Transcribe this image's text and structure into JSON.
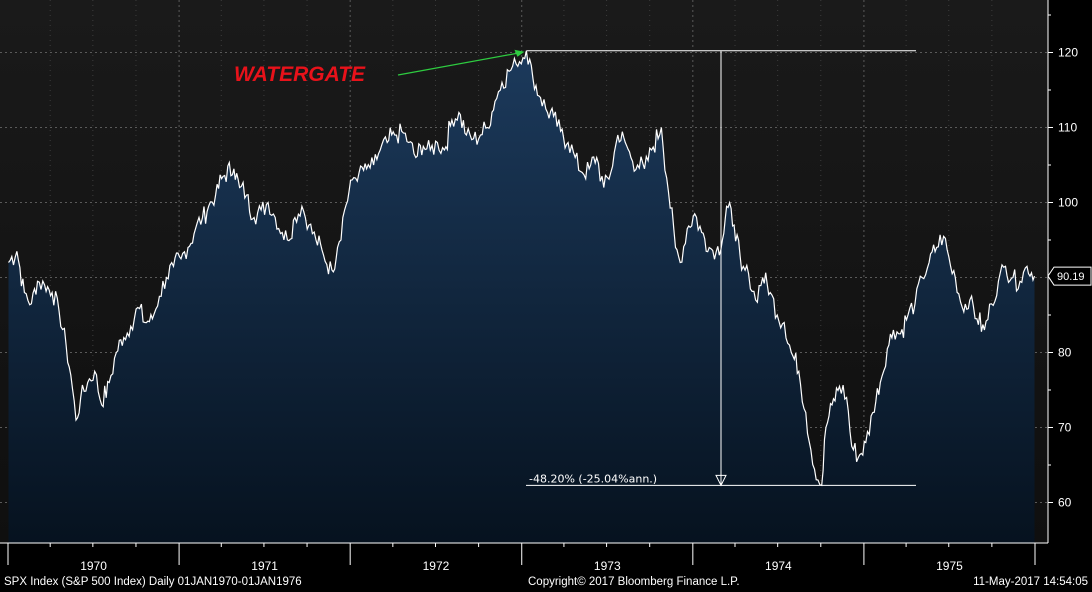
{
  "chart_data": {
    "type": "area",
    "title": "",
    "xlabel": "",
    "ylabel": "",
    "xlim": [
      "1970-01-01",
      "1976-01-01"
    ],
    "ylim": [
      55,
      127
    ],
    "grid": true,
    "y_axis_side": "right",
    "y_ticks": [
      "60",
      "70",
      "80",
      "90",
      "100",
      "110",
      "120"
    ],
    "x_tick_labels": [
      "1970",
      "1971",
      "1972",
      "1973",
      "1974",
      "1975"
    ],
    "series": [
      {
        "color": "#ffffff",
        "fill_top": "#1c3a5c",
        "fill_bottom": "#06121f",
        "x": [
          "1970-01-02",
          "1970-01-20",
          "1970-02-05",
          "1970-02-20",
          "1970-03-05",
          "1970-03-20",
          "1970-04-05",
          "1970-04-20",
          "1970-05-05",
          "1970-05-15",
          "1970-05-26",
          "1970-06-05",
          "1970-06-20",
          "1970-07-05",
          "1970-07-20",
          "1970-08-05",
          "1970-08-20",
          "1970-09-05",
          "1970-09-20",
          "1970-10-05",
          "1970-10-20",
          "1970-11-05",
          "1970-11-20",
          "1970-12-05",
          "1970-12-20",
          "1971-01-05",
          "1971-01-20",
          "1971-02-05",
          "1971-02-20",
          "1971-03-05",
          "1971-03-20",
          "1971-04-05",
          "1971-04-28",
          "1971-05-10",
          "1971-05-25",
          "1971-06-10",
          "1971-06-25",
          "1971-07-10",
          "1971-07-25",
          "1971-08-09",
          "1971-08-20",
          "1971-09-05",
          "1971-09-20",
          "1971-10-05",
          "1971-10-20",
          "1971-11-05",
          "1971-11-23",
          "1971-12-05",
          "1971-12-20",
          "1972-01-05",
          "1972-01-20",
          "1972-02-05",
          "1972-02-20",
          "1972-03-05",
          "1972-03-20",
          "1972-04-05",
          "1972-04-20",
          "1972-05-05",
          "1972-05-20",
          "1972-06-05",
          "1972-06-20",
          "1972-07-05",
          "1972-07-20",
          "1972-08-05",
          "1972-08-20",
          "1972-09-05",
          "1972-09-20",
          "1972-10-05",
          "1972-10-20",
          "1972-11-05",
          "1972-11-20",
          "1972-12-05",
          "1972-12-20",
          "1973-01-11",
          "1973-01-25",
          "1973-02-10",
          "1973-02-25",
          "1973-03-10",
          "1973-03-25",
          "1973-04-10",
          "1973-04-25",
          "1973-05-10",
          "1973-05-25",
          "1973-06-10",
          "1973-06-25",
          "1973-07-10",
          "1973-07-25",
          "1973-08-10",
          "1973-08-22",
          "1973-09-05",
          "1973-09-20",
          "1973-10-05",
          "1973-10-26",
          "1973-11-10",
          "1973-11-25",
          "1973-12-05",
          "1973-12-20",
          "1974-01-05",
          "1974-01-20",
          "1974-02-05",
          "1974-02-20",
          "1974-03-05",
          "1974-03-14",
          "1974-03-30",
          "1974-04-15",
          "1974-04-30",
          "1974-05-15",
          "1974-05-30",
          "1974-06-15",
          "1974-06-30",
          "1974-07-15",
          "1974-07-30",
          "1974-08-15",
          "1974-08-30",
          "1974-09-10",
          "1974-09-25",
          "1974-10-03",
          "1974-10-12",
          "1974-10-25",
          "1974-11-10",
          "1974-11-25",
          "1974-12-06",
          "1974-12-20",
          "1975-01-05",
          "1975-01-20",
          "1975-02-05",
          "1975-02-20",
          "1975-03-05",
          "1975-03-20",
          "1975-04-05",
          "1975-04-20",
          "1975-05-05",
          "1975-05-20",
          "1975-06-05",
          "1975-06-20",
          "1975-07-05",
          "1975-07-15",
          "1975-07-30",
          "1975-08-15",
          "1975-08-30",
          "1975-09-15",
          "1975-09-30",
          "1975-10-15",
          "1975-10-30",
          "1975-11-15",
          "1975-11-30",
          "1975-12-15",
          "1975-12-31"
        ],
        "values": [
          92,
          93.5,
          88,
          86.5,
          89.5,
          89,
          88,
          85.5,
          81,
          77,
          71,
          74,
          76,
          77.5,
          73,
          76,
          80,
          82,
          83.5,
          86,
          84,
          84.5,
          87.5,
          90,
          91.5,
          92.5,
          94,
          96.5,
          98,
          99.5,
          101,
          103.5,
          104.5,
          102,
          101,
          98,
          99,
          100,
          98,
          96,
          95,
          98,
          99.5,
          97,
          95,
          93,
          91,
          94,
          99,
          103,
          104,
          104.5,
          105,
          107,
          108,
          109,
          109.5,
          108,
          106,
          107.5,
          107,
          108,
          107,
          111,
          112,
          109,
          108.5,
          109,
          110,
          113.5,
          116,
          117.5,
          118.5,
          120.24,
          116.5,
          114,
          112,
          111.5,
          109.5,
          108,
          106,
          104,
          104.5,
          106,
          102,
          104,
          109,
          108,
          106,
          105,
          104.5,
          107,
          110,
          101.5,
          94,
          92,
          96.5,
          98.5,
          96,
          94,
          93.5,
          95,
          99.5,
          97,
          91,
          90.5,
          87,
          90,
          88,
          85,
          84,
          80,
          77.5,
          72,
          67,
          63,
          62.28,
          70,
          73,
          75.5,
          74,
          67.5,
          66,
          68,
          72,
          76,
          80.5,
          83,
          82.5,
          85,
          86.5,
          90,
          92,
          94,
          95.5,
          91.5,
          90,
          86,
          87,
          84.5,
          83,
          86.5,
          89.5,
          91.5,
          90,
          89.5,
          91.5,
          90.19
        ]
      }
    ],
    "last_value_label": "90.19",
    "annotations": {
      "event_label": "WATERGATE",
      "drawdown_label": "-48.20% (-25.04%ann.)",
      "peak_value": 120.24,
      "trough_value": 62.28
    }
  },
  "footer": {
    "left": "SPX Index (S&P 500 Index)  Daily 01JAN1970-01JAN1976",
    "center": "Copyright© 2017 Bloomberg Finance L.P.",
    "right": "11-May-2017  14:54:05"
  }
}
